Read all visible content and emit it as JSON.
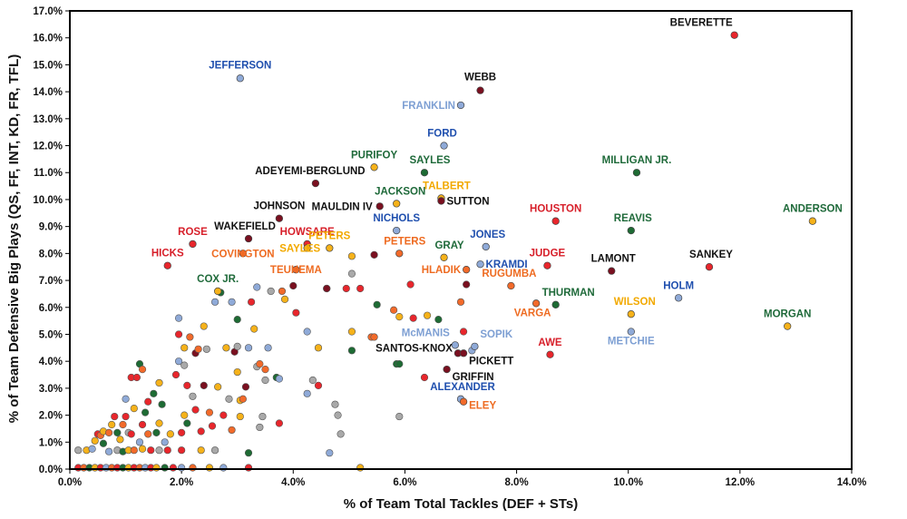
{
  "chart_data": {
    "type": "scatter",
    "title": "",
    "xlabel": "% of Team Total Tackles (DEF + STs)",
    "ylabel": "% of Team Defensive Big Plays (QS, FF, INT, KD, FR, TFL)",
    "xlim": [
      0,
      14
    ],
    "ylim": [
      0,
      17
    ],
    "x_unit": "%",
    "y_unit": "%",
    "x_ticks": [
      "0.0%",
      "2.0%",
      "4.0%",
      "6.0%",
      "8.0%",
      "10.0%",
      "12.0%",
      "14.0%"
    ],
    "y_ticks": [
      "0.0%",
      "1.0%",
      "2.0%",
      "3.0%",
      "4.0%",
      "5.0%",
      "6.0%",
      "7.0%",
      "8.0%",
      "9.0%",
      "10.0%",
      "11.0%",
      "12.0%",
      "13.0%",
      "14.0%",
      "15.0%",
      "16.0%",
      "17.0%"
    ],
    "grid": false,
    "legend": "none",
    "colors": {
      "red": "#e8262c",
      "darkred": "#7a1020",
      "green": "#1e6b34",
      "yellow": "#f6b21a",
      "lightblue": "#8faad8",
      "gray": "#a9a9a9",
      "orange": "#f26a2a",
      "navy": "#1b2a5a",
      "blue": "#1f56b3"
    },
    "label_colors": {
      "black": "#111111",
      "red": "#d71f2a",
      "green": "#1f6a3a",
      "blue": "#1f4fae",
      "lightblue": "#7d9fd3",
      "gold": "#f2a900",
      "orange": "#ee6b21"
    },
    "labeled_points": [
      {
        "name": "BEVERETTE",
        "x": 11.9,
        "y": 16.1,
        "color": "red",
        "label_color": "black"
      },
      {
        "name": "JEFFERSON",
        "x": 3.05,
        "y": 14.5,
        "color": "lightblue",
        "label_color": "blue"
      },
      {
        "name": "WEBB",
        "x": 7.35,
        "y": 14.05,
        "color": "darkred",
        "label_color": "black"
      },
      {
        "name": "FRANKLIN",
        "x": 7.0,
        "y": 13.5,
        "color": "lightblue",
        "label_color": "lightblue"
      },
      {
        "name": "FORD",
        "x": 6.7,
        "y": 12.0,
        "color": "lightblue",
        "label_color": "blue"
      },
      {
        "name": "PURIFOY",
        "x": 5.45,
        "y": 11.2,
        "color": "yellow",
        "label_color": "green"
      },
      {
        "name": "SAYLES",
        "x": 6.35,
        "y": 11.0,
        "color": "green",
        "label_color": "green"
      },
      {
        "name": "MILLIGAN JR.",
        "x": 10.15,
        "y": 11.0,
        "color": "green",
        "label_color": "green"
      },
      {
        "name": "ADEYEMI-BERGLUND",
        "x": 4.4,
        "y": 10.6,
        "color": "darkred",
        "label_color": "black"
      },
      {
        "name": "JACKSON",
        "x": 5.85,
        "y": 9.85,
        "color": "yellow",
        "label_color": "green"
      },
      {
        "name": "TALBERT",
        "x": 6.65,
        "y": 10.05,
        "color": "yellow",
        "label_color": "gold"
      },
      {
        "name": "SUTTON",
        "x": 6.65,
        "y": 9.95,
        "color": "darkred",
        "label_color": "black"
      },
      {
        "name": "MAULDIN IV",
        "x": 5.55,
        "y": 9.75,
        "color": "darkred",
        "label_color": "black"
      },
      {
        "name": "JOHNSON",
        "x": 3.75,
        "y": 9.3,
        "color": "darkred",
        "label_color": "black"
      },
      {
        "name": "HOUSTON",
        "x": 8.7,
        "y": 9.2,
        "color": "red",
        "label_color": "red"
      },
      {
        "name": "ANDERSON",
        "x": 13.3,
        "y": 9.2,
        "color": "yellow",
        "label_color": "green"
      },
      {
        "name": "NICHOLS",
        "x": 5.85,
        "y": 8.85,
        "color": "lightblue",
        "label_color": "blue"
      },
      {
        "name": "REAVIS",
        "x": 10.05,
        "y": 8.85,
        "color": "green",
        "label_color": "green"
      },
      {
        "name": "WAKEFIELD",
        "x": 3.2,
        "y": 8.55,
        "color": "darkred",
        "label_color": "black"
      },
      {
        "name": "ROSE",
        "x": 2.2,
        "y": 8.35,
        "color": "red",
        "label_color": "red"
      },
      {
        "name": "HOWSARE",
        "x": 4.25,
        "y": 8.35,
        "color": "red",
        "label_color": "red"
      },
      {
        "name": "JONES",
        "x": 7.45,
        "y": 8.25,
        "color": "lightblue",
        "label_color": "blue"
      },
      {
        "name": "SAYLES",
        "x": 4.25,
        "y": 8.2,
        "color": "yellow",
        "label_color": "gold"
      },
      {
        "name": "PETERS",
        "x": 4.65,
        "y": 8.2,
        "color": "yellow",
        "label_color": "gold"
      },
      {
        "name": "PETERS",
        "x": 5.9,
        "y": 8.0,
        "color": "orange",
        "label_color": "orange"
      },
      {
        "name": "COVINGTON",
        "x": 3.1,
        "y": 8.0,
        "color": "orange",
        "label_color": "orange"
      },
      {
        "name": "GRAY",
        "x": 6.7,
        "y": 7.85,
        "color": "yellow",
        "label_color": "green"
      },
      {
        "name": "JUDGE",
        "x": 8.55,
        "y": 7.55,
        "color": "red",
        "label_color": "red"
      },
      {
        "name": "HICKS",
        "x": 1.75,
        "y": 7.55,
        "color": "red",
        "label_color": "red"
      },
      {
        "name": "KRAMDI",
        "x": 7.35,
        "y": 7.6,
        "color": "lightblue",
        "label_color": "blue"
      },
      {
        "name": "TEUHEMA",
        "x": 4.05,
        "y": 7.4,
        "color": "orange",
        "label_color": "orange"
      },
      {
        "name": "SANKEY",
        "x": 11.45,
        "y": 7.5,
        "color": "red",
        "label_color": "black"
      },
      {
        "name": "LAMONT",
        "x": 9.7,
        "y": 7.35,
        "color": "darkred",
        "label_color": "black"
      },
      {
        "name": "HLADIK",
        "x": 7.1,
        "y": 7.4,
        "color": "orange",
        "label_color": "orange"
      },
      {
        "name": "RUGUMBA",
        "x": 7.9,
        "y": 6.8,
        "color": "orange",
        "label_color": "orange"
      },
      {
        "name": "COX JR.",
        "x": 2.65,
        "y": 6.6,
        "color": "yellow",
        "label_color": "green"
      },
      {
        "name": "HOLM",
        "x": 10.9,
        "y": 6.35,
        "color": "lightblue",
        "label_color": "blue"
      },
      {
        "name": "THURMAN",
        "x": 8.7,
        "y": 6.1,
        "color": "green",
        "label_color": "green"
      },
      {
        "name": "VARGA",
        "x": 8.35,
        "y": 6.15,
        "color": "orange",
        "label_color": "orange"
      },
      {
        "name": "WILSON",
        "x": 10.05,
        "y": 5.75,
        "color": "yellow",
        "label_color": "gold"
      },
      {
        "name": "MORGAN",
        "x": 12.85,
        "y": 5.3,
        "color": "yellow",
        "label_color": "green"
      },
      {
        "name": "METCHIE",
        "x": 10.05,
        "y": 5.1,
        "color": "lightblue",
        "label_color": "lightblue"
      },
      {
        "name": "AWE",
        "x": 8.6,
        "y": 4.25,
        "color": "red",
        "label_color": "red"
      },
      {
        "name": "McMANIS",
        "x": 6.9,
        "y": 4.6,
        "color": "lightblue",
        "label_color": "lightblue"
      },
      {
        "name": "SOPIK",
        "x": 7.25,
        "y": 4.55,
        "color": "lightblue",
        "label_color": "lightblue"
      },
      {
        "name": "SANTOS-KNOX",
        "x": 6.95,
        "y": 4.3,
        "color": "darkred",
        "label_color": "black"
      },
      {
        "name": "PICKETT",
        "x": 7.05,
        "y": 4.3,
        "color": "darkred",
        "label_color": "black"
      },
      {
        "name": "GRIFFIN",
        "x": 6.75,
        "y": 3.7,
        "color": "darkred",
        "label_color": "black"
      },
      {
        "name": "ALEXANDER",
        "x": 7.0,
        "y": 2.6,
        "color": "lightblue",
        "label_color": "blue"
      },
      {
        "name": "ELEY",
        "x": 7.05,
        "y": 2.5,
        "color": "orange",
        "label_color": "orange"
      }
    ],
    "unlabeled_points": [
      [
        0.15,
        0.05,
        "red"
      ],
      [
        0.25,
        0.05,
        "orange"
      ],
      [
        0.35,
        0.05,
        "green"
      ],
      [
        0.45,
        0.05,
        "yellow"
      ],
      [
        0.55,
        0.05,
        "red"
      ],
      [
        0.65,
        0.05,
        "lightblue"
      ],
      [
        0.75,
        0.05,
        "orange"
      ],
      [
        0.85,
        0.05,
        "red"
      ],
      [
        0.95,
        0.05,
        "green"
      ],
      [
        1.05,
        0.05,
        "yellow"
      ],
      [
        1.15,
        0.05,
        "red"
      ],
      [
        1.25,
        0.05,
        "orange"
      ],
      [
        1.35,
        0.05,
        "lightblue"
      ],
      [
        1.45,
        0.05,
        "red"
      ],
      [
        1.55,
        0.05,
        "yellow"
      ],
      [
        1.7,
        0.05,
        "green"
      ],
      [
        1.85,
        0.05,
        "red"
      ],
      [
        2.0,
        0.05,
        "lightblue"
      ],
      [
        2.2,
        0.05,
        "orange"
      ],
      [
        2.5,
        0.05,
        "yellow"
      ],
      [
        2.75,
        0.05,
        "lightblue"
      ],
      [
        3.2,
        0.05,
        "red"
      ],
      [
        5.2,
        0.05,
        "yellow"
      ],
      [
        0.15,
        0.7,
        "gray"
      ],
      [
        0.3,
        0.7,
        "yellow"
      ],
      [
        0.4,
        0.75,
        "lightblue"
      ],
      [
        0.45,
        1.05,
        "yellow"
      ],
      [
        0.5,
        1.3,
        "red"
      ],
      [
        0.55,
        1.25,
        "orange"
      ],
      [
        0.6,
        0.95,
        "green"
      ],
      [
        0.6,
        1.4,
        "yellow"
      ],
      [
        0.7,
        0.65,
        "lightblue"
      ],
      [
        0.7,
        1.35,
        "orange"
      ],
      [
        0.75,
        1.65,
        "yellow"
      ],
      [
        0.8,
        1.95,
        "red"
      ],
      [
        0.85,
        0.7,
        "gray"
      ],
      [
        0.85,
        1.35,
        "green"
      ],
      [
        0.9,
        1.1,
        "yellow"
      ],
      [
        0.95,
        0.65,
        "green"
      ],
      [
        0.95,
        1.65,
        "orange"
      ],
      [
        1.0,
        1.95,
        "red"
      ],
      [
        1.0,
        2.6,
        "lightblue"
      ],
      [
        1.05,
        0.7,
        "yellow"
      ],
      [
        1.05,
        1.35,
        "gray"
      ],
      [
        1.1,
        1.3,
        "red"
      ],
      [
        1.1,
        3.4,
        "red"
      ],
      [
        1.15,
        0.7,
        "orange"
      ],
      [
        1.15,
        2.25,
        "yellow"
      ],
      [
        1.2,
        3.4,
        "red"
      ],
      [
        1.25,
        3.9,
        "green"
      ],
      [
        1.25,
        1.0,
        "lightblue"
      ],
      [
        1.3,
        0.75,
        "yellow"
      ],
      [
        1.3,
        1.65,
        "red"
      ],
      [
        1.3,
        3.7,
        "orange"
      ],
      [
        1.35,
        2.1,
        "green"
      ],
      [
        1.4,
        1.3,
        "orange"
      ],
      [
        1.4,
        2.5,
        "red"
      ],
      [
        1.45,
        0.7,
        "red"
      ],
      [
        1.5,
        2.8,
        "green"
      ],
      [
        1.55,
        1.35,
        "green"
      ],
      [
        1.6,
        1.7,
        "yellow"
      ],
      [
        1.6,
        3.2,
        "yellow"
      ],
      [
        1.6,
        0.7,
        "gray"
      ],
      [
        1.65,
        2.4,
        "green"
      ],
      [
        1.7,
        1.0,
        "lightblue"
      ],
      [
        1.75,
        0.7,
        "red"
      ],
      [
        1.8,
        1.3,
        "yellow"
      ],
      [
        1.9,
        3.5,
        "red"
      ],
      [
        1.95,
        5.6,
        "lightblue"
      ],
      [
        1.95,
        5.0,
        "red"
      ],
      [
        1.95,
        4.0,
        "lightblue"
      ],
      [
        2.0,
        1.35,
        "red"
      ],
      [
        2.0,
        0.7,
        "red"
      ],
      [
        2.05,
        2.0,
        "yellow"
      ],
      [
        2.05,
        3.85,
        "gray"
      ],
      [
        2.05,
        4.5,
        "yellow"
      ],
      [
        2.1,
        1.7,
        "green"
      ],
      [
        2.1,
        3.1,
        "red"
      ],
      [
        2.15,
        4.9,
        "orange"
      ],
      [
        2.2,
        2.7,
        "gray"
      ],
      [
        2.25,
        4.3,
        "darkred"
      ],
      [
        2.25,
        2.2,
        "red"
      ],
      [
        2.3,
        4.45,
        "orange"
      ],
      [
        2.35,
        1.4,
        "red"
      ],
      [
        2.35,
        0.7,
        "yellow"
      ],
      [
        2.4,
        3.1,
        "darkred"
      ],
      [
        2.4,
        5.3,
        "yellow"
      ],
      [
        2.45,
        4.45,
        "gray"
      ],
      [
        2.5,
        2.1,
        "orange"
      ],
      [
        2.55,
        1.6,
        "red"
      ],
      [
        2.6,
        6.2,
        "lightblue"
      ],
      [
        2.6,
        0.7,
        "gray"
      ],
      [
        2.65,
        3.05,
        "yellow"
      ],
      [
        2.7,
        6.55,
        "green"
      ],
      [
        2.75,
        2.0,
        "red"
      ],
      [
        2.8,
        4.5,
        "yellow"
      ],
      [
        2.85,
        2.6,
        "gray"
      ],
      [
        2.9,
        1.45,
        "orange"
      ],
      [
        2.9,
        6.2,
        "lightblue"
      ],
      [
        2.95,
        4.35,
        "darkred"
      ],
      [
        3.0,
        5.55,
        "green"
      ],
      [
        3.0,
        3.6,
        "yellow"
      ],
      [
        3.0,
        4.55,
        "gray"
      ],
      [
        3.05,
        2.55,
        "yellow"
      ],
      [
        3.05,
        1.95,
        "yellow"
      ],
      [
        3.1,
        2.6,
        "orange"
      ],
      [
        3.15,
        3.05,
        "darkred"
      ],
      [
        3.2,
        0.6,
        "green"
      ],
      [
        3.2,
        4.5,
        "lightblue"
      ],
      [
        3.25,
        6.2,
        "red"
      ],
      [
        3.3,
        5.2,
        "yellow"
      ],
      [
        3.35,
        3.8,
        "gray"
      ],
      [
        3.35,
        6.75,
        "lightblue"
      ],
      [
        3.4,
        1.55,
        "gray"
      ],
      [
        3.4,
        3.9,
        "orange"
      ],
      [
        3.45,
        1.95,
        "gray"
      ],
      [
        3.5,
        3.7,
        "orange"
      ],
      [
        3.5,
        3.3,
        "gray"
      ],
      [
        3.55,
        4.5,
        "lightblue"
      ],
      [
        3.6,
        6.6,
        "gray"
      ],
      [
        3.7,
        3.4,
        "green"
      ],
      [
        3.75,
        1.7,
        "red"
      ],
      [
        3.75,
        3.35,
        "lightblue"
      ],
      [
        3.8,
        6.6,
        "orange"
      ],
      [
        3.85,
        6.3,
        "yellow"
      ],
      [
        4.0,
        6.8,
        "darkred"
      ],
      [
        4.05,
        5.8,
        "red"
      ],
      [
        4.25,
        5.1,
        "lightblue"
      ],
      [
        4.25,
        2.8,
        "lightblue"
      ],
      [
        4.35,
        3.3,
        "gray"
      ],
      [
        4.45,
        4.5,
        "yellow"
      ],
      [
        4.45,
        3.1,
        "red"
      ],
      [
        4.6,
        6.7,
        "green"
      ],
      [
        4.6,
        6.7,
        "darkred"
      ],
      [
        4.65,
        0.6,
        "lightblue"
      ],
      [
        4.75,
        2.4,
        "gray"
      ],
      [
        4.8,
        2.0,
        "gray"
      ],
      [
        4.85,
        1.3,
        "gray"
      ],
      [
        4.95,
        6.7,
        "red"
      ],
      [
        5.05,
        7.9,
        "yellow"
      ],
      [
        5.05,
        7.25,
        "gray"
      ],
      [
        5.05,
        5.1,
        "yellow"
      ],
      [
        5.05,
        4.4,
        "green"
      ],
      [
        5.2,
        6.7,
        "red"
      ],
      [
        5.4,
        4.9,
        "orange"
      ],
      [
        5.45,
        7.95,
        "darkred"
      ],
      [
        5.45,
        4.9,
        "orange"
      ],
      [
        5.5,
        6.1,
        "green"
      ],
      [
        5.8,
        5.9,
        "orange"
      ],
      [
        5.85,
        3.9,
        "green"
      ],
      [
        5.9,
        3.9,
        "green"
      ],
      [
        5.9,
        5.65,
        "yellow"
      ],
      [
        5.9,
        1.95,
        "gray"
      ],
      [
        6.1,
        6.85,
        "red"
      ],
      [
        6.15,
        5.6,
        "red"
      ],
      [
        6.35,
        3.4,
        "red"
      ],
      [
        6.4,
        5.7,
        "yellow"
      ],
      [
        6.6,
        5.55,
        "green"
      ],
      [
        7.0,
        6.2,
        "orange"
      ],
      [
        7.05,
        5.1,
        "red"
      ],
      [
        7.1,
        6.85,
        "darkred"
      ],
      [
        7.2,
        4.4,
        "lightblue"
      ]
    ]
  }
}
